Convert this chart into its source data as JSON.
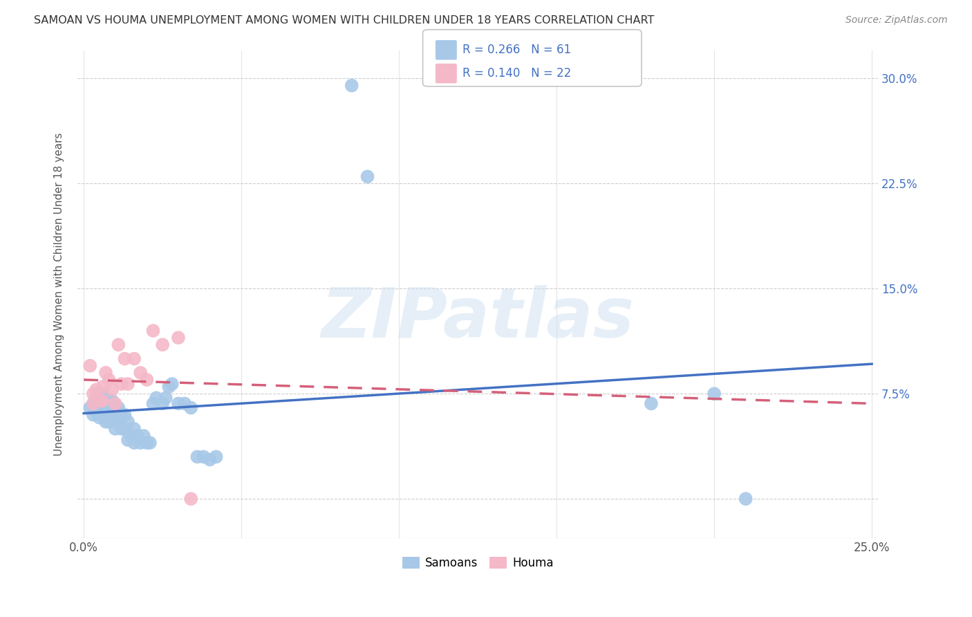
{
  "title": "SAMOAN VS HOUMA UNEMPLOYMENT AMONG WOMEN WITH CHILDREN UNDER 18 YEARS CORRELATION CHART",
  "source": "Source: ZipAtlas.com",
  "ylabel": "Unemployment Among Women with Children Under 18 years",
  "samoans_R": "0.266",
  "samoans_N": "61",
  "houma_R": "0.140",
  "houma_N": "22",
  "samoans_color": "#a8c8e8",
  "houma_color": "#f4b8c8",
  "samoans_line_color": "#4472c4",
  "houma_line_color": "#d4607a",
  "background_color": "#ffffff",
  "watermark": "ZIPatlas",
  "xlim": [
    0.0,
    0.25
  ],
  "ylim": [
    -0.028,
    0.32
  ],
  "xticks": [
    0.0,
    0.25
  ],
  "yticks": [
    0.075,
    0.15,
    0.225,
    0.3
  ],
  "grid_yticks": [
    0.0,
    0.075,
    0.15,
    0.225,
    0.3
  ],
  "samoans_x": [
    0.002,
    0.003,
    0.003,
    0.004,
    0.004,
    0.005,
    0.005,
    0.005,
    0.005,
    0.006,
    0.006,
    0.006,
    0.006,
    0.007,
    0.007,
    0.007,
    0.007,
    0.008,
    0.008,
    0.008,
    0.008,
    0.009,
    0.009,
    0.009,
    0.01,
    0.01,
    0.01,
    0.011,
    0.011,
    0.012,
    0.012,
    0.013,
    0.013,
    0.014,
    0.014,
    0.015,
    0.016,
    0.016,
    0.017,
    0.018,
    0.019,
    0.02,
    0.021,
    0.022,
    0.023,
    0.025,
    0.026,
    0.027,
    0.028,
    0.03,
    0.032,
    0.034,
    0.036,
    0.038,
    0.04,
    0.042,
    0.085,
    0.09,
    0.18,
    0.2,
    0.21
  ],
  "samoans_y": [
    0.065,
    0.06,
    0.068,
    0.062,
    0.072,
    0.058,
    0.065,
    0.07,
    0.075,
    0.06,
    0.065,
    0.07,
    0.075,
    0.055,
    0.062,
    0.068,
    0.072,
    0.055,
    0.06,
    0.065,
    0.07,
    0.058,
    0.065,
    0.07,
    0.05,
    0.055,
    0.065,
    0.055,
    0.065,
    0.05,
    0.06,
    0.05,
    0.06,
    0.042,
    0.055,
    0.045,
    0.04,
    0.05,
    0.045,
    0.04,
    0.045,
    0.04,
    0.04,
    0.068,
    0.072,
    0.068,
    0.072,
    0.08,
    0.082,
    0.068,
    0.068,
    0.065,
    0.03,
    0.03,
    0.028,
    0.03,
    0.295,
    0.23,
    0.068,
    0.075,
    0.0
  ],
  "houma_x": [
    0.002,
    0.003,
    0.003,
    0.004,
    0.005,
    0.006,
    0.006,
    0.007,
    0.008,
    0.009,
    0.01,
    0.011,
    0.012,
    0.013,
    0.014,
    0.016,
    0.018,
    0.02,
    0.022,
    0.025,
    0.03,
    0.034
  ],
  "houma_y": [
    0.095,
    0.068,
    0.075,
    0.078,
    0.07,
    0.07,
    0.08,
    0.09,
    0.085,
    0.078,
    0.068,
    0.11,
    0.082,
    0.1,
    0.082,
    0.1,
    0.09,
    0.085,
    0.12,
    0.11,
    0.115,
    0.0
  ]
}
